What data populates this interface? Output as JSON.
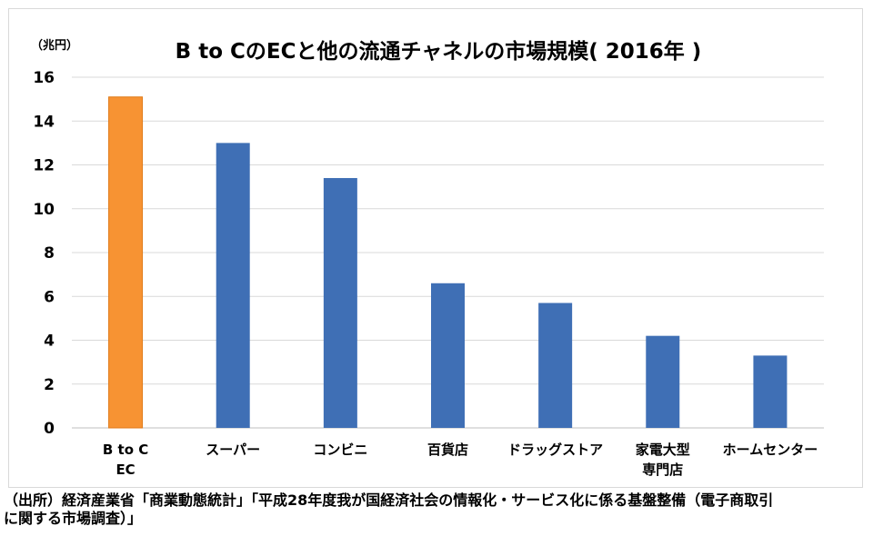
{
  "chart_data": {
    "type": "bar",
    "title": "B to CのECと他の流通チャネルの市場規模( 2016年 )",
    "unit_label": "（兆円）",
    "categories": [
      [
        "B to C",
        "EC"
      ],
      [
        "スーパー"
      ],
      [
        "コンビニ"
      ],
      [
        "百貨店"
      ],
      [
        "ドラッグストア"
      ],
      [
        "家電大型",
        "専門店"
      ],
      [
        "ホームセンター"
      ]
    ],
    "values": [
      15.1,
      13.0,
      11.4,
      6.6,
      5.7,
      4.2,
      3.3
    ],
    "colors": [
      "#F79333",
      "#3F6FB5",
      "#3F6FB5",
      "#3F6FB5",
      "#3F6FB5",
      "#3F6FB5",
      "#3F6FB5"
    ],
    "highlight_color": "#F79333",
    "bar_color": "#3F6FB5",
    "ylim": [
      0,
      16
    ],
    "yticks": [
      "0",
      "2",
      "4",
      "6",
      "8",
      "10",
      "12",
      "14",
      "16"
    ],
    "grid": true,
    "legend": "none"
  },
  "source": {
    "line1": "（出所）経済産業省「商業動態統計」「平成28年度我が国経済社会の情報化・サービス化に係る基盤整備（電子商取引",
    "line2": "に関する市場調査）」"
  }
}
